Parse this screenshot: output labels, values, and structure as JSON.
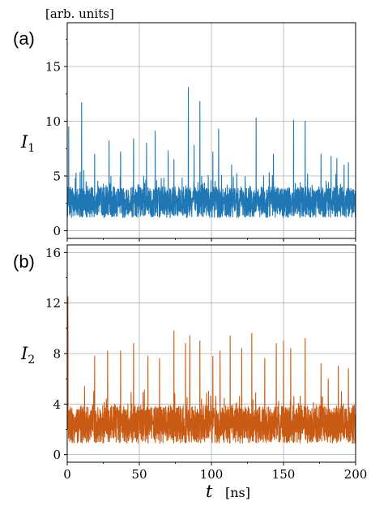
{
  "unit_label": "[arb. units]",
  "x_axis": {
    "symbol": "t",
    "unit": "[ns]",
    "ticks": [
      0,
      50,
      100,
      150,
      200
    ],
    "range": [
      0,
      200
    ]
  },
  "colors": {
    "a": "#1f77b4",
    "b": "#c85a14",
    "grid": "#b0b0b0",
    "axis": "#000000"
  },
  "chart_data": [
    {
      "type": "line",
      "panel": "(a)",
      "ylabel_symbol": "I",
      "ylabel_sub": "1",
      "xlim": [
        0,
        200
      ],
      "ylim": [
        -0.7,
        19
      ],
      "yticks": [
        0,
        5,
        10,
        15
      ],
      "baseline": 2.6,
      "noise_amp": 1.4,
      "noise_step": 0.1,
      "spikes": [
        {
          "t": 1.0,
          "v": 9.5
        },
        {
          "t": 10.0,
          "v": 11.7
        },
        {
          "t": 19.0,
          "v": 7.0
        },
        {
          "t": 29.0,
          "v": 8.2
        },
        {
          "t": 37.0,
          "v": 7.2
        },
        {
          "t": 46.0,
          "v": 8.4
        },
        {
          "t": 55.0,
          "v": 8.0
        },
        {
          "t": 61.0,
          "v": 9.1
        },
        {
          "t": 70.0,
          "v": 7.3
        },
        {
          "t": 74.0,
          "v": 6.5
        },
        {
          "t": 84.0,
          "v": 13.1
        },
        {
          "t": 88.0,
          "v": 7.8
        },
        {
          "t": 92.0,
          "v": 11.8
        },
        {
          "t": 101.0,
          "v": 7.2
        },
        {
          "t": 105.0,
          "v": 9.3
        },
        {
          "t": 114.0,
          "v": 6.0
        },
        {
          "t": 131.0,
          "v": 10.3
        },
        {
          "t": 143.0,
          "v": 7.0
        },
        {
          "t": 157.0,
          "v": 10.1
        },
        {
          "t": 165.0,
          "v": 10.0
        },
        {
          "t": 176.0,
          "v": 7.0
        },
        {
          "t": 183.0,
          "v": 6.8
        },
        {
          "t": 187.0,
          "v": 6.6
        },
        {
          "t": 192.0,
          "v": 6.0
        },
        {
          "t": 195.0,
          "v": 6.2
        }
      ]
    },
    {
      "type": "line",
      "panel": "(b)",
      "ylabel_symbol": "I",
      "ylabel_sub": "2",
      "xlim": [
        0,
        200
      ],
      "ylim": [
        -0.6,
        16.6
      ],
      "yticks": [
        0,
        4,
        8,
        12,
        16
      ],
      "baseline": 2.4,
      "noise_amp": 1.5,
      "noise_step": 0.1,
      "spikes": [
        {
          "t": 0.5,
          "v": 12.5
        },
        {
          "t": 12.0,
          "v": 5.4
        },
        {
          "t": 19.0,
          "v": 7.8
        },
        {
          "t": 28.0,
          "v": 8.2
        },
        {
          "t": 37.0,
          "v": 8.2
        },
        {
          "t": 46.0,
          "v": 8.8
        },
        {
          "t": 56.0,
          "v": 7.8
        },
        {
          "t": 64.0,
          "v": 7.6
        },
        {
          "t": 74.0,
          "v": 9.8
        },
        {
          "t": 82.0,
          "v": 8.8
        },
        {
          "t": 85.0,
          "v": 9.4
        },
        {
          "t": 92.0,
          "v": 9.0
        },
        {
          "t": 101.0,
          "v": 7.8
        },
        {
          "t": 106.0,
          "v": 8.2
        },
        {
          "t": 113.0,
          "v": 9.4
        },
        {
          "t": 121.0,
          "v": 8.4
        },
        {
          "t": 128.0,
          "v": 9.6
        },
        {
          "t": 137.0,
          "v": 7.6
        },
        {
          "t": 145.0,
          "v": 8.8
        },
        {
          "t": 150.0,
          "v": 9.0
        },
        {
          "t": 155.0,
          "v": 8.4
        },
        {
          "t": 165.0,
          "v": 9.2
        },
        {
          "t": 176.0,
          "v": 7.2
        },
        {
          "t": 181.0,
          "v": 6.0
        },
        {
          "t": 188.0,
          "v": 7.0
        },
        {
          "t": 195.0,
          "v": 6.8
        }
      ]
    }
  ]
}
